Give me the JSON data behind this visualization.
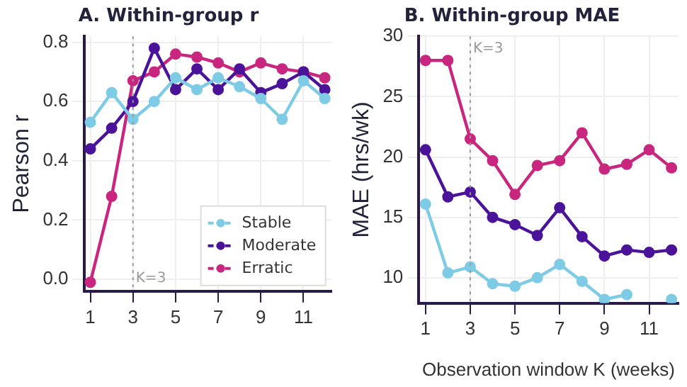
{
  "chart_data": [
    {
      "type": "line",
      "title": "A. Within-group r",
      "ylabel": "Pearson r",
      "x": [
        1,
        2,
        3,
        4,
        5,
        6,
        7,
        8,
        9,
        10,
        11,
        12
      ],
      "series": [
        {
          "name": "Stable",
          "color": "#7ecbe6",
          "values": [
            0.53,
            0.63,
            0.54,
            0.6,
            0.68,
            0.64,
            0.68,
            0.65,
            0.61,
            0.54,
            0.67,
            0.61
          ]
        },
        {
          "name": "Moderate",
          "color": "#4b1399",
          "values": [
            0.44,
            0.51,
            0.6,
            0.78,
            0.64,
            0.71,
            0.64,
            0.71,
            0.63,
            0.66,
            0.7,
            0.64
          ]
        },
        {
          "name": "Erratic",
          "color": "#c9267f",
          "values": [
            -0.01,
            0.28,
            0.67,
            0.7,
            0.76,
            0.75,
            0.73,
            0.7,
            0.73,
            0.71,
            0.7,
            0.68
          ]
        }
      ],
      "xlim": [
        0.7,
        12.3
      ],
      "xticks": [
        1,
        3,
        5,
        7,
        9,
        11
      ],
      "ylim": [
        -0.04,
        0.82
      ],
      "yticks": [
        {
          "value": 0,
          "label": "0.0"
        },
        0.2,
        0.4,
        0.6,
        0.8
      ],
      "ref_lines": [
        {
          "axis": "x",
          "value": 3,
          "label": "K=3",
          "color": "#999999",
          "line_style": "dotted"
        }
      ],
      "grid": true,
      "legend": "bottom right",
      "marker": "circle",
      "line_style": "solid"
    },
    {
      "type": "line",
      "title": "B. Within-group MAE",
      "ylabel": "MAE (hrs/wk)",
      "xlabel": "Observation window K (weeks)",
      "x": [
        1,
        2,
        3,
        4,
        5,
        6,
        7,
        8,
        9,
        10,
        11,
        12
      ],
      "series": [
        {
          "color": "#7ecbe6",
          "values": [
            16.1,
            10.4,
            10.9,
            9.5,
            9.3,
            10.0,
            11.1,
            9.7,
            8.2,
            8.6,
            null,
            8.2
          ]
        },
        {
          "color": "#4b1399",
          "values": [
            20.6,
            16.7,
            17.1,
            15.0,
            14.4,
            13.5,
            15.8,
            13.4,
            11.8,
            12.3,
            12.1,
            12.3
          ]
        },
        {
          "color": "#c9267f",
          "values": [
            28.0,
            28.0,
            21.5,
            19.7,
            16.9,
            19.3,
            19.7,
            22.0,
            19.0,
            19.4,
            20.6,
            19.1
          ]
        }
      ],
      "xlim": [
        0.7,
        12.3
      ],
      "xticks": [
        1,
        3,
        5,
        7,
        9,
        11
      ],
      "ylim": [
        7.9,
        30
      ],
      "yticks": [
        10,
        15,
        20,
        25,
        30
      ],
      "ref_lines": [
        {
          "axis": "x",
          "value": 3,
          "label": "K=3",
          "color": "#999999",
          "line_style": "dotted"
        }
      ],
      "grid": true,
      "legend": false,
      "marker": "circle",
      "line_style": "solid"
    }
  ]
}
